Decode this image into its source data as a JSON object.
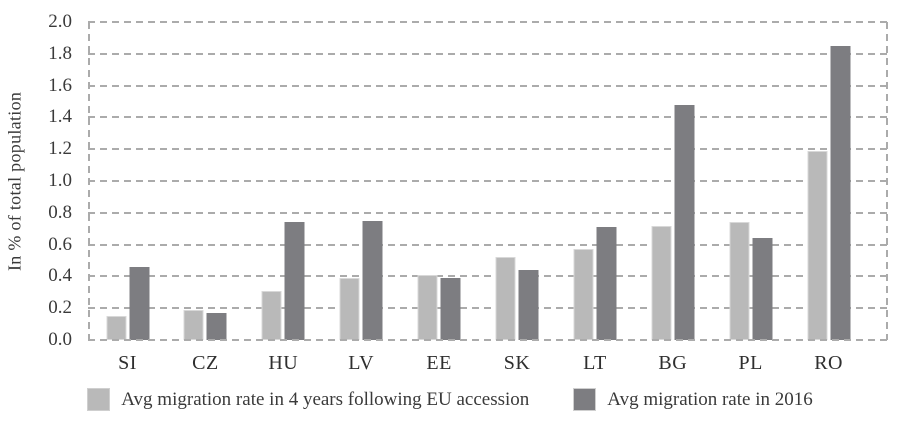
{
  "chart_data": {
    "type": "bar",
    "title": "",
    "ylabel": "In % of total population",
    "xlabel": "",
    "ylim": [
      0,
      2.0
    ],
    "ytick_step": 0.2,
    "yticks": [
      "0.0",
      "0.2",
      "0.4",
      "0.6",
      "0.8",
      "1.0",
      "1.2",
      "1.4",
      "1.6",
      "1.8",
      "2.0"
    ],
    "grid": "horizontal-dashed",
    "legend_position": "bottom",
    "categories": [
      "SI",
      "CZ",
      "HU",
      "LV",
      "EE",
      "SK",
      "LT",
      "BG",
      "PL",
      "RO"
    ],
    "series": [
      {
        "name": "Avg migration rate in 4 years following EU accession",
        "color": "#b9b9b9",
        "values": [
          0.15,
          0.19,
          0.31,
          0.39,
          0.41,
          0.52,
          0.57,
          0.72,
          0.74,
          1.19
        ]
      },
      {
        "name": "Avg migration rate in 2016",
        "color": "#7d7d81",
        "values": [
          0.46,
          0.17,
          0.74,
          0.75,
          0.39,
          0.44,
          0.71,
          1.48,
          0.64,
          1.85
        ]
      }
    ],
    "colors": {
      "gridline": "#ababab",
      "text": "#3a3a3a",
      "background": "#ffffff"
    }
  }
}
